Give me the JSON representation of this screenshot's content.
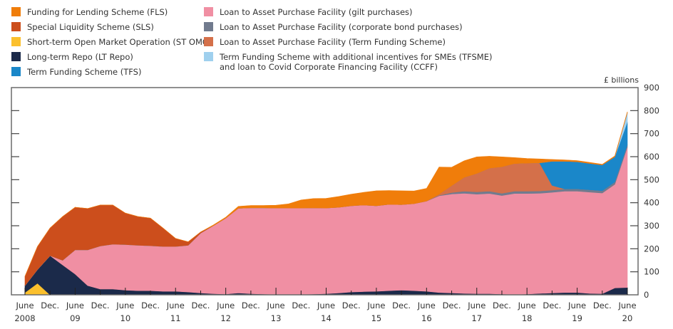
{
  "chart_data": {
    "type": "area",
    "stacked": true,
    "title": "",
    "ylabel": "£ billions",
    "xlabel": "",
    "ylim": [
      0,
      900
    ],
    "yticks": [
      0,
      100,
      200,
      300,
      400,
      500,
      600,
      700,
      800,
      900
    ],
    "x_start": "June 2008",
    "x_end": "June 2020",
    "x_unit": "years since June 2008",
    "xticks": [
      {
        "label": "June",
        "year": "2008"
      },
      {
        "label": "Dec.",
        "year": ""
      },
      {
        "label": "June",
        "year": "09"
      },
      {
        "label": "Dec.",
        "year": ""
      },
      {
        "label": "June",
        "year": "10"
      },
      {
        "label": "Dec.",
        "year": ""
      },
      {
        "label": "June",
        "year": "11"
      },
      {
        "label": "Dec.",
        "year": ""
      },
      {
        "label": "June",
        "year": "12"
      },
      {
        "label": "Dec.",
        "year": ""
      },
      {
        "label": "June",
        "year": "13"
      },
      {
        "label": "Dec.",
        "year": ""
      },
      {
        "label": "June",
        "year": "14"
      },
      {
        "label": "Dec.",
        "year": ""
      },
      {
        "label": "June",
        "year": "15"
      },
      {
        "label": "Dec.",
        "year": ""
      },
      {
        "label": "June",
        "year": "16"
      },
      {
        "label": "Dec.",
        "year": ""
      },
      {
        "label": "June",
        "year": "17"
      },
      {
        "label": "Dec.",
        "year": ""
      },
      {
        "label": "June",
        "year": "18"
      },
      {
        "label": "Dec.",
        "year": ""
      },
      {
        "label": "June",
        "year": "19"
      },
      {
        "label": "Dec.",
        "year": ""
      },
      {
        "label": "June",
        "year": "20"
      }
    ],
    "x": [
      0,
      0.25,
      0.5,
      0.75,
      1.0,
      1.25,
      1.5,
      1.75,
      2.0,
      2.25,
      2.5,
      2.75,
      3.0,
      3.25,
      3.5,
      3.75,
      4.0,
      4.25,
      4.5,
      4.75,
      5.0,
      5.25,
      5.5,
      5.75,
      6.0,
      6.25,
      6.5,
      6.75,
      7.0,
      7.25,
      7.5,
      7.75,
      8.0,
      8.25,
      8.5,
      8.75,
      9.0,
      9.25,
      9.5,
      9.75,
      10.0,
      10.25,
      10.5,
      10.75,
      11.0,
      11.25,
      11.5,
      11.75,
      12.0
    ],
    "series": [
      {
        "key": "stomo",
        "name": "Short-term Open Market Operation (ST OMO)",
        "color": "#FBC02D",
        "values": [
          10,
          50,
          0,
          0,
          0,
          0,
          0,
          0,
          0,
          0,
          0,
          0,
          0,
          0,
          0,
          0,
          0,
          0,
          0,
          0,
          0,
          0,
          0,
          0,
          0,
          0,
          0,
          0,
          0,
          0,
          0,
          0,
          0,
          0,
          0,
          0,
          0,
          0,
          0,
          0,
          0,
          0,
          0,
          0,
          0,
          0,
          0,
          0,
          0
        ]
      },
      {
        "key": "ltrepo",
        "name": "Long-term Repo (LT Repo)",
        "color": "#1B2A4A",
        "values": [
          30,
          60,
          170,
          130,
          90,
          40,
          25,
          25,
          20,
          18,
          18,
          15,
          15,
          12,
          8,
          5,
          3,
          8,
          5,
          3,
          2,
          2,
          2,
          3,
          5,
          8,
          12,
          14,
          15,
          18,
          20,
          18,
          15,
          10,
          8,
          6,
          5,
          5,
          3,
          2,
          3,
          6,
          8,
          10,
          10,
          6,
          5,
          30,
          32
        ]
      },
      {
        "key": "gilt",
        "name": "Loan to Asset Purchase Facility (gilt purchases)",
        "color": "#F08FA3",
        "values": [
          0,
          0,
          0,
          20,
          105,
          155,
          187,
          195,
          198,
          197,
          195,
          195,
          195,
          203,
          260,
          295,
          330,
          368,
          373,
          375,
          375,
          375,
          375,
          375,
          372,
          372,
          375,
          376,
          372,
          375,
          372,
          378,
          392,
          420,
          430,
          435,
          432,
          435,
          428,
          438,
          437,
          435,
          437,
          440,
          440,
          440,
          437,
          450,
          610
        ]
      },
      {
        "key": "corp",
        "name": "Loan to Asset Purchase Facility (corporate bond purchases)",
        "color": "#717B8E",
        "values": [
          0,
          0,
          0,
          0,
          0,
          0,
          0,
          0,
          0,
          0,
          0,
          0,
          0,
          0,
          0,
          0,
          0,
          0,
          0,
          0,
          0,
          0,
          0,
          0,
          0,
          0,
          0,
          0,
          0,
          0,
          0,
          0,
          0,
          2,
          6,
          9,
          10,
          10,
          10,
          10,
          10,
          10,
          10,
          10,
          10,
          10,
          10,
          10,
          10
        ]
      },
      {
        "key": "apftfs",
        "name": "Loan to Asset Purchase Facility (Term Funding Scheme)",
        "color": "#D4704A",
        "values": [
          0,
          0,
          0,
          0,
          0,
          0,
          0,
          0,
          0,
          0,
          0,
          0,
          0,
          0,
          0,
          0,
          0,
          0,
          0,
          0,
          0,
          0,
          0,
          0,
          0,
          0,
          0,
          0,
          0,
          0,
          0,
          0,
          0,
          5,
          30,
          60,
          80,
          100,
          115,
          120,
          122,
          122,
          20,
          0,
          0,
          0,
          0,
          0,
          0
        ]
      },
      {
        "key": "tfs",
        "name": "Term Funding Scheme (TFS)",
        "color": "#1A87C9",
        "values": [
          0,
          0,
          0,
          0,
          0,
          0,
          0,
          0,
          0,
          0,
          0,
          0,
          0,
          0,
          0,
          0,
          0,
          0,
          0,
          0,
          0,
          0,
          0,
          0,
          0,
          0,
          0,
          0,
          0,
          0,
          0,
          0,
          0,
          0,
          0,
          0,
          0,
          0,
          0,
          0,
          0,
          0,
          105,
          120,
          118,
          115,
          112,
          110,
          100
        ]
      },
      {
        "key": "tfsme",
        "name": "Term Funding Scheme with additional incentives for SMEs (TFSME) and loan to Covid Corporate Financing Facility (CCFF)",
        "color": "#9FD0EE",
        "values": [
          0,
          0,
          0,
          0,
          0,
          0,
          0,
          0,
          0,
          0,
          0,
          0,
          0,
          0,
          0,
          0,
          0,
          0,
          0,
          0,
          0,
          0,
          0,
          0,
          0,
          0,
          0,
          0,
          0,
          0,
          0,
          0,
          0,
          0,
          0,
          0,
          0,
          0,
          0,
          0,
          0,
          0,
          0,
          0,
          0,
          0,
          0,
          0,
          40
        ]
      },
      {
        "key": "sls",
        "name": "Special Liquidity Scheme (SLS)",
        "color": "#CC4E1C",
        "values": [
          40,
          100,
          120,
          190,
          185,
          180,
          178,
          170,
          137,
          125,
          120,
          80,
          35,
          15,
          5,
          0,
          0,
          0,
          0,
          0,
          0,
          0,
          0,
          0,
          0,
          0,
          0,
          0,
          0,
          0,
          0,
          0,
          0,
          0,
          0,
          0,
          0,
          0,
          0,
          0,
          0,
          0,
          0,
          0,
          0,
          0,
          0,
          0,
          0
        ]
      },
      {
        "key": "fls",
        "name": "Funding for Lending Scheme (FLS)",
        "color": "#F07D0A",
        "values": [
          0,
          0,
          0,
          0,
          0,
          0,
          0,
          0,
          0,
          0,
          0,
          0,
          0,
          0,
          0,
          3,
          4,
          8,
          10,
          10,
          12,
          18,
          35,
          40,
          42,
          47,
          50,
          55,
          65,
          60,
          60,
          55,
          55,
          118,
          80,
          72,
          72,
          52,
          43,
          26,
          20,
          17,
          8,
          6,
          5,
          4,
          3,
          3,
          3
        ]
      }
    ],
    "legend": {
      "placement": "top",
      "columns": [
        [
          "fls",
          "sls",
          "stomo",
          "ltrepo",
          "tfs"
        ],
        [
          "gilt",
          "corp",
          "apftfs",
          "tfsme"
        ]
      ]
    },
    "grid": false
  },
  "legend_labels": {
    "fls": "Funding for Lending Scheme (FLS)",
    "sls": "Special Liquidity Scheme (SLS)",
    "stomo": "Short-term Open Market Operation (ST OMO)",
    "ltrepo": "Long-term Repo (LT Repo)",
    "tfs": "Term Funding Scheme (TFS)",
    "gilt": "Loan to Asset Purchase Facility (gilt purchases)",
    "corp": "Loan to Asset Purchase Facility (corporate bond purchases)",
    "apftfs": "Loan to Asset Purchase Facility (Term Funding Scheme)",
    "tfsme_line1": "Term Funding Scheme with additional incentives for SMEs (TFSME)",
    "tfsme_line2": "and loan to Covid Corporate Financing Facility (CCFF)"
  },
  "unit_label": "£ billions"
}
